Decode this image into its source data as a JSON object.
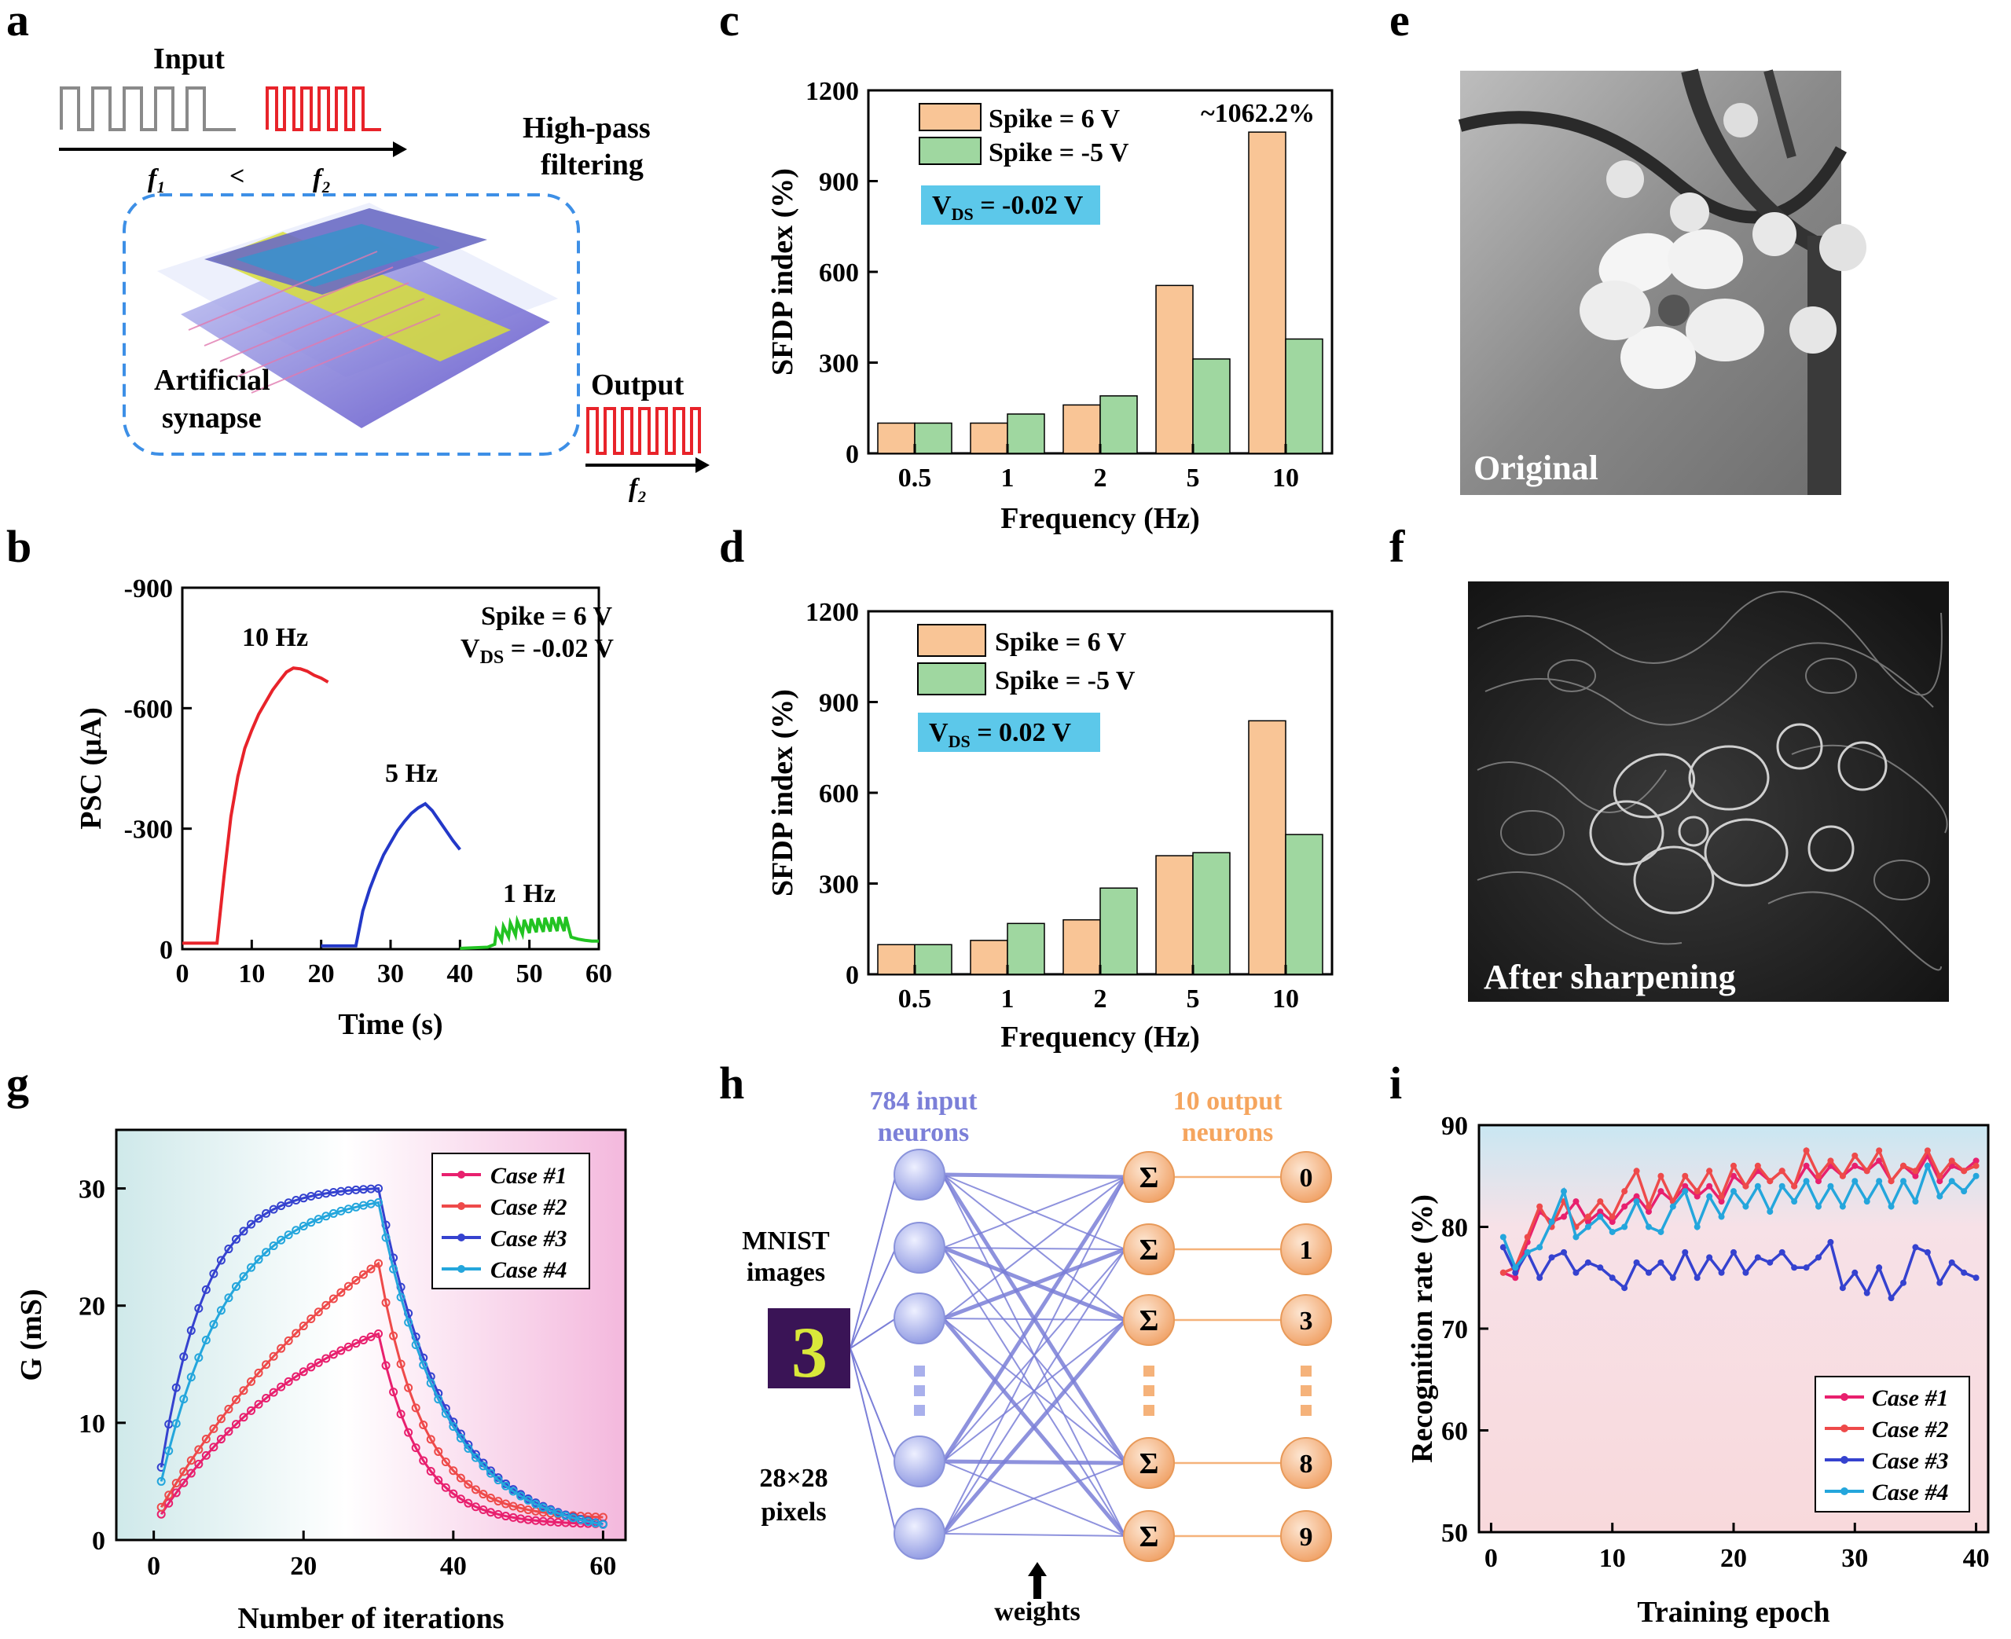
{
  "panel_labels": [
    "a",
    "b",
    "c",
    "d",
    "e",
    "f",
    "g",
    "h",
    "i"
  ],
  "colors": {
    "orange": "#f9c596",
    "green": "#9fd7a0",
    "red": "#e8232a",
    "blue": "#2338c8",
    "green_line": "#22c322",
    "pink": "#e8206e",
    "case2": "#ee4a4a",
    "case3": "#3542cf",
    "case4": "#24a6dc",
    "vds_box": "#5cc8ea",
    "dashed": "#3d8fe6",
    "neuron_blue": "#9aa3e8",
    "neuron_orange": "#f5b27a",
    "line_blue": "#7b7fd8"
  },
  "panel_a": {
    "input_label": "Input",
    "f1": "f₁",
    "lt": "<",
    "f2": "f₂",
    "high_pass": "High-pass",
    "filtering": "filtering",
    "artificial": "Artificial",
    "synapse": "synapse",
    "output_label": "Output",
    "f2_out": "f₂"
  },
  "panel_e": {
    "label": "Original"
  },
  "panel_f": {
    "label": "After sharpening"
  },
  "panel_h": {
    "input_title_1": "784 input",
    "input_title_2": "neurons",
    "output_title_1": "10 output",
    "output_title_2": "neurons",
    "mnist_1": "MNIST",
    "mnist_2": "images",
    "mnist_digit": "3",
    "pixels_1": "28×28",
    "pixels_2": "pixels",
    "sigma": "Σ",
    "outputs": [
      "0",
      "1",
      "3",
      "8",
      "9"
    ],
    "weights": "weights"
  },
  "chart_data": [
    {
      "id": "b",
      "type": "line",
      "xlabel": "Time (s)",
      "ylabel": "PSC (μA)",
      "xlim": [
        0,
        60
      ],
      "ylim": [
        -900,
        0
      ],
      "y_inverted": true,
      "xticks": [
        0,
        10,
        20,
        30,
        40,
        50,
        60
      ],
      "yticks": [
        -900,
        -600,
        -300,
        0
      ],
      "annotations": [
        "Spike = 6 V",
        "V",
        "DS",
        " = -0.02 V"
      ],
      "series": [
        {
          "name": "10 Hz",
          "color": "#e8232a",
          "x": [
            0,
            5,
            6,
            7,
            8,
            9,
            10,
            11,
            12,
            13,
            14,
            15,
            16,
            17,
            18,
            19,
            20,
            21
          ],
          "y": [
            -15,
            -15,
            -180,
            -330,
            -430,
            -500,
            -545,
            -585,
            -615,
            -645,
            -668,
            -690,
            -700,
            -698,
            -692,
            -682,
            -675,
            -665
          ]
        },
        {
          "name": "5 Hz",
          "color": "#2338c8",
          "x": [
            20,
            25,
            26,
            27,
            28,
            29,
            30,
            31,
            32,
            33,
            34,
            35,
            36,
            37,
            38,
            39,
            40
          ],
          "y": [
            -8,
            -8,
            -95,
            -150,
            -195,
            -235,
            -265,
            -295,
            -318,
            -338,
            -352,
            -362,
            -345,
            -320,
            -295,
            -270,
            -248
          ]
        },
        {
          "name": "1 Hz",
          "color": "#22c322",
          "spiky": true,
          "x": [
            40,
            44,
            45,
            46,
            47,
            48,
            49,
            50,
            51,
            52,
            53,
            54,
            55,
            56,
            57,
            58,
            59,
            60
          ],
          "y": [
            -2,
            -5,
            -12,
            -22,
            -30,
            -35,
            -38,
            -40,
            -42,
            -43,
            -44,
            -45,
            -45,
            -30,
            -25,
            -22,
            -20,
            -20
          ]
        }
      ]
    },
    {
      "id": "c",
      "type": "bar",
      "xlabel": "Frequency (Hz)",
      "ylabel": "SFDP index (%)",
      "ylim": [
        0,
        1200
      ],
      "yticks": [
        0,
        300,
        600,
        900,
        1200
      ],
      "categories": [
        "0.5",
        "1",
        "2",
        "5",
        "10"
      ],
      "series": [
        {
          "name": "Spike =  6 V",
          "color": "#f9c596",
          "values": [
            100,
            100,
            160,
            555,
            1062
          ]
        },
        {
          "name": "Spike = -5 V",
          "color": "#9fd7a0",
          "values": [
            100,
            130,
            190,
            312,
            378
          ]
        }
      ],
      "vds": [
        "V",
        "DS",
        " = -0.02 V"
      ],
      "annotation": "~1062.2%"
    },
    {
      "id": "d",
      "type": "bar",
      "xlabel": "Frequency (Hz)",
      "ylabel": "SFDP index (%)",
      "ylim": [
        0,
        1200
      ],
      "yticks": [
        0,
        300,
        600,
        900,
        1200
      ],
      "categories": [
        "0.5",
        "1",
        "2",
        "5",
        "10"
      ],
      "series": [
        {
          "name": "Spike =  6 V",
          "color": "#f9c596",
          "values": [
            98,
            112,
            180,
            392,
            838
          ]
        },
        {
          "name": "Spike = -5 V",
          "color": "#9fd7a0",
          "values": [
            98,
            168,
            285,
            402,
            462
          ]
        }
      ],
      "vds": [
        "V",
        "DS",
        " =  0.02 V"
      ]
    },
    {
      "id": "g",
      "type": "line",
      "xlabel": "Number of iterations",
      "ylabel": "G (mS)",
      "xlim": [
        -5,
        63
      ],
      "ylim": [
        0,
        35
      ],
      "xticks": [
        0,
        20,
        40,
        60
      ],
      "yticks": [
        0,
        10,
        20,
        30
      ],
      "legend": "top-right",
      "series": [
        {
          "name": "Case #1",
          "color": "#e8206e",
          "pot_start": 2.2,
          "pot_end": 17.6,
          "pot_tau": 22,
          "dep_end": 1.3,
          "dep_tau": 5.5
        },
        {
          "name": "Case #2",
          "color": "#ee4a4a",
          "pot_start": 2.8,
          "pot_end": 23.6,
          "pot_tau": 35,
          "dep_end": 1.8,
          "dep_tau": 6
        },
        {
          "name": "Case #3",
          "color": "#3542cf",
          "pot_start": 6.2,
          "pot_end": 30.0,
          "pot_tau": 6,
          "dep_end": 0.3,
          "dep_tau": 9
        },
        {
          "name": "Case #4",
          "color": "#24a6dc",
          "pot_start": 5.0,
          "pot_end": 28.8,
          "pot_tau": 9,
          "dep_end": 0.3,
          "dep_tau": 9
        }
      ]
    },
    {
      "id": "i",
      "type": "line",
      "xlabel": "Training epoch",
      "ylabel": "Recognition rate (%)",
      "xlim": [
        -1,
        41
      ],
      "ylim": [
        50,
        90
      ],
      "xticks": [
        0,
        10,
        20,
        30,
        40
      ],
      "yticks": [
        50,
        60,
        70,
        80,
        90
      ],
      "legend": "bottom-right",
      "x": [
        1,
        2,
        3,
        4,
        5,
        6,
        7,
        8,
        9,
        10,
        11,
        12,
        13,
        14,
        15,
        16,
        17,
        18,
        19,
        20,
        21,
        22,
        23,
        24,
        25,
        26,
        27,
        28,
        29,
        30,
        31,
        32,
        33,
        34,
        35,
        36,
        37,
        38,
        39,
        40
      ],
      "series": [
        {
          "name": "Case #1",
          "color": "#e8206e",
          "values": [
            75.5,
            75.0,
            78.5,
            81.5,
            80.5,
            81.0,
            82.5,
            80.5,
            81.5,
            80.5,
            82.0,
            83.0,
            81.5,
            83.5,
            82.5,
            84.0,
            83.0,
            84.0,
            82.5,
            85.0,
            84.0,
            85.5,
            84.5,
            85.5,
            84.0,
            86.0,
            84.5,
            86.0,
            85.0,
            86.0,
            85.5,
            86.5,
            84.5,
            86.0,
            85.0,
            87.0,
            84.5,
            86.0,
            85.5,
            86.5
          ]
        },
        {
          "name": "Case #2",
          "color": "#ee4a4a",
          "values": [
            75.5,
            76.0,
            79.0,
            82.0,
            80.0,
            82.5,
            80.0,
            81.0,
            82.5,
            81.0,
            83.5,
            85.5,
            82.0,
            85.0,
            82.5,
            85.0,
            83.5,
            85.5,
            83.0,
            86.0,
            84.0,
            86.0,
            84.5,
            85.5,
            84.0,
            87.5,
            85.0,
            86.5,
            85.0,
            87.0,
            85.5,
            87.5,
            84.5,
            86.0,
            85.5,
            87.5,
            85.0,
            86.5,
            85.5,
            86.0
          ]
        },
        {
          "name": "Case #3",
          "color": "#3542cf",
          "values": [
            78.0,
            75.5,
            77.5,
            75.0,
            77.0,
            77.5,
            75.5,
            76.5,
            76.0,
            75.0,
            74.0,
            76.5,
            75.5,
            76.5,
            75.0,
            77.5,
            75.0,
            77.0,
            75.5,
            77.5,
            75.5,
            77.0,
            76.5,
            77.5,
            76.0,
            76.0,
            77.0,
            78.5,
            74.0,
            75.5,
            73.5,
            76.0,
            73.0,
            74.5,
            78.0,
            77.5,
            74.5,
            76.5,
            75.5,
            75.0
          ]
        },
        {
          "name": "Case #4",
          "color": "#24a6dc",
          "values": [
            79.0,
            76.0,
            77.5,
            78.0,
            80.5,
            83.5,
            79.0,
            80.0,
            81.0,
            79.5,
            80.0,
            82.5,
            80.0,
            79.5,
            82.0,
            83.5,
            80.0,
            83.0,
            81.0,
            83.5,
            82.0,
            84.0,
            81.5,
            84.0,
            82.5,
            84.5,
            82.0,
            84.0,
            82.0,
            84.5,
            82.5,
            84.5,
            82.0,
            84.5,
            82.5,
            86.0,
            83.0,
            84.5,
            83.5,
            85.0
          ]
        }
      ]
    }
  ]
}
